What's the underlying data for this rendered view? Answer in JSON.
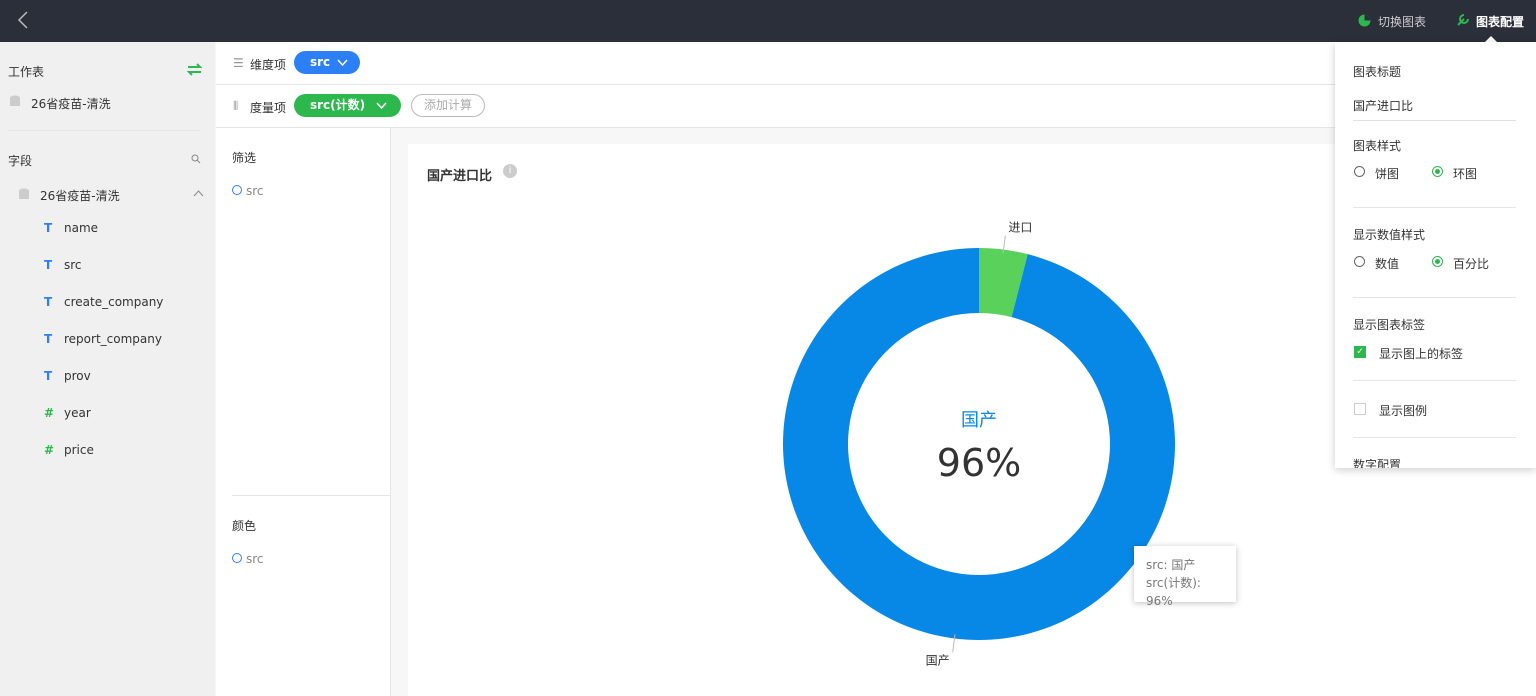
{
  "topbar": {
    "switch_chart": "切换图表",
    "chart_config": "图表配置"
  },
  "sidebar": {
    "worksheet_title": "工作表",
    "worksheet": "26省疫苗-清洗",
    "fields_title": "字段",
    "dataset": "26省疫苗-清洗",
    "fields": [
      {
        "icon": "T",
        "name": "name"
      },
      {
        "icon": "T",
        "name": "src"
      },
      {
        "icon": "T",
        "name": "create_company"
      },
      {
        "icon": "T",
        "name": "report_company"
      },
      {
        "icon": "T",
        "name": "prov"
      },
      {
        "icon": "#",
        "name": "year"
      },
      {
        "icon": "#",
        "name": "price"
      }
    ]
  },
  "shelf": {
    "dimension_label": "维度项",
    "dimension": "src",
    "measure_label": "度量项",
    "measure": "src(计数)",
    "add_calc": "添加计算"
  },
  "filter": {
    "title": "筛选",
    "field": "src"
  },
  "color": {
    "title": "颜色",
    "field": "src"
  },
  "chart_data": {
    "type": "pie",
    "donut": true,
    "title": "国产进口比",
    "categories": [
      "国产",
      "进口"
    ],
    "values": [
      96,
      4
    ],
    "value_labels": [
      "96%",
      null
    ],
    "colors": [
      "#0788e6",
      "#5ad15a"
    ]
  },
  "tooltip": [
    "src: 国产",
    "src(计数): 96%"
  ],
  "config": {
    "title_label": "图表标题",
    "title_value": "国产进口比",
    "style_label": "图表样式",
    "style_options": [
      "饼图",
      "环图"
    ],
    "value_style_label": "显示数值样式",
    "value_style_options": [
      "数值",
      "百分比"
    ],
    "labels_label": "显示图表标签",
    "show_labels": "显示图上的标签",
    "show_legend": "显示图例",
    "number_config": "数字配置"
  }
}
